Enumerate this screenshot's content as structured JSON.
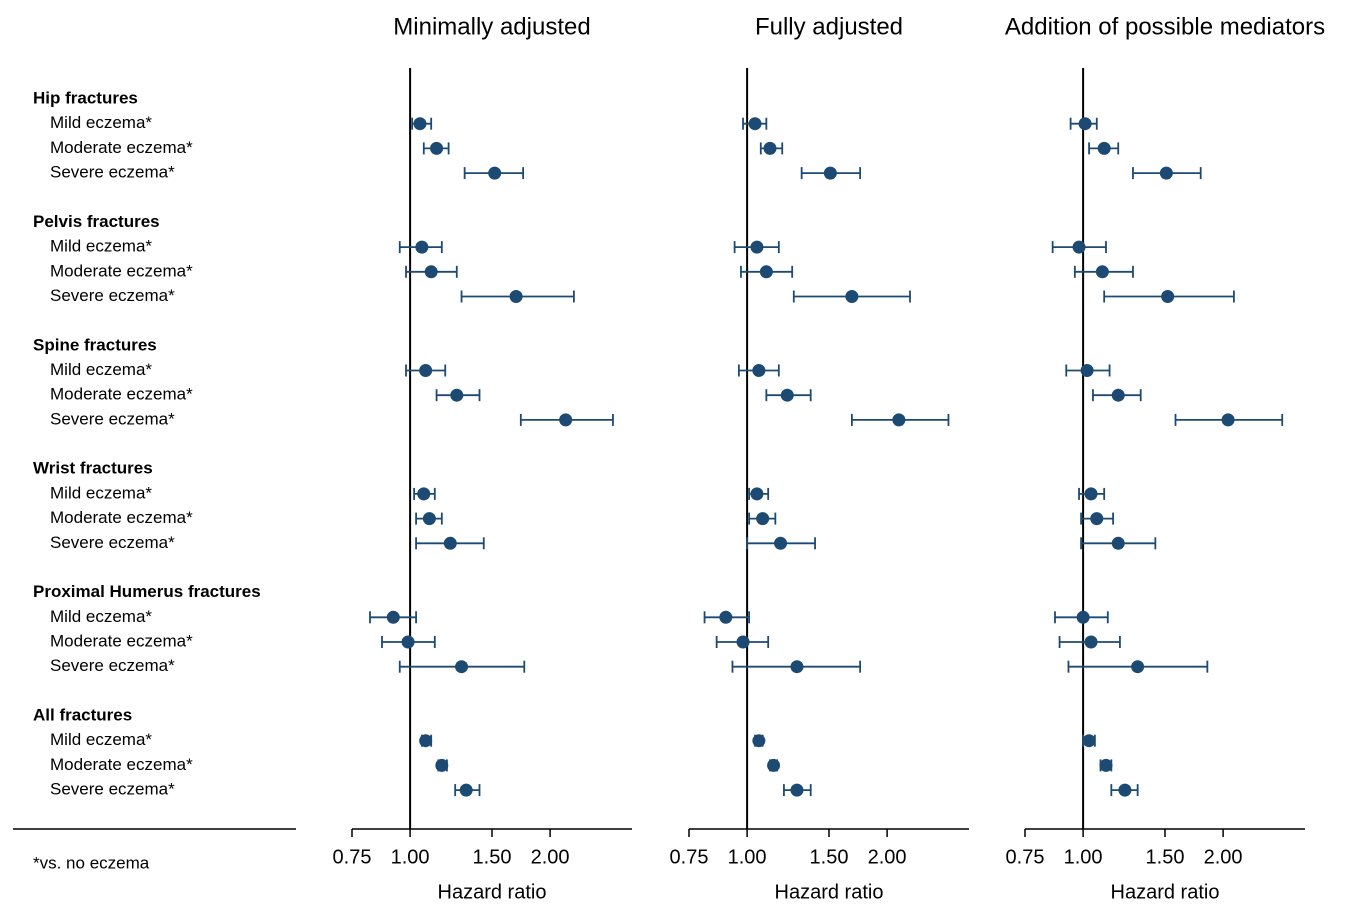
{
  "rows": [
    {
      "title": "Hip fractures",
      "items": [
        "Mild eczema*",
        "Moderate eczema*",
        "Severe eczema*"
      ]
    },
    {
      "title": "Pelvis fractures",
      "items": [
        "Mild eczema*",
        "Moderate eczema*",
        "Severe eczema*"
      ]
    },
    {
      "title": "Spine fractures",
      "items": [
        "Mild eczema*",
        "Moderate eczema*",
        "Severe eczema*"
      ]
    },
    {
      "title": "Wrist fractures",
      "items": [
        "Mild eczema*",
        "Moderate eczema*",
        "Severe eczema*"
      ]
    },
    {
      "title": "Proximal Humerus fractures",
      "items": [
        "Mild eczema*",
        "Moderate eczema*",
        "Severe eczema*"
      ]
    },
    {
      "title": "All fractures",
      "items": [
        "Mild eczema*",
        "Moderate eczema*",
        "Severe eczema*"
      ]
    }
  ],
  "footnote": "*vs. no eczema",
  "chart_data": [
    {
      "type": "forest",
      "title": "Minimally adjusted",
      "xlabel": "Hazard ratio",
      "log_x": true,
      "xlim": [
        0.75,
        3
      ],
      "xticks": [
        0.75,
        {
          "value": 1,
          "label": "1.00"
        },
        {
          "value": 1.5,
          "label": "1.50"
        },
        {
          "value": 2,
          "label": "2.00"
        }
      ],
      "reference_line": 1,
      "color": "#1d4a72",
      "estimate": [
        1.05,
        1.14,
        1.52,
        1.06,
        1.11,
        1.69,
        1.08,
        1.26,
        2.16,
        1.07,
        1.1,
        1.22,
        0.92,
        0.99,
        1.29,
        1.08,
        1.17,
        1.32
      ],
      "lower": [
        1.01,
        1.07,
        1.31,
        0.95,
        0.98,
        1.29,
        0.98,
        1.14,
        1.73,
        1.02,
        1.03,
        1.03,
        0.82,
        0.87,
        0.95,
        1.06,
        1.15,
        1.25
      ],
      "upper": [
        1.11,
        1.21,
        1.75,
        1.17,
        1.26,
        2.25,
        1.19,
        1.41,
        2.73,
        1.13,
        1.17,
        1.44,
        1.03,
        1.13,
        1.76,
        1.11,
        1.2,
        1.41
      ]
    },
    {
      "type": "forest",
      "title": "Fully adjusted",
      "xlabel": "Hazard ratio",
      "log_x": true,
      "xlim": [
        0.75,
        3
      ],
      "xticks": [
        0.75,
        {
          "value": 1,
          "label": "1.00"
        },
        {
          "value": 1.5,
          "label": "1.50"
        },
        {
          "value": 2,
          "label": "2.00"
        }
      ],
      "reference_line": 1,
      "color": "#1d4a72",
      "estimate": [
        1.04,
        1.12,
        1.51,
        1.05,
        1.1,
        1.68,
        1.06,
        1.22,
        2.12,
        1.05,
        1.08,
        1.18,
        0.9,
        0.98,
        1.28,
        1.06,
        1.14,
        1.28
      ],
      "lower": [
        0.98,
        1.07,
        1.31,
        0.94,
        0.97,
        1.26,
        0.96,
        1.1,
        1.68,
        1.01,
        1.01,
        1.0,
        0.81,
        0.86,
        0.93,
        1.04,
        1.12,
        1.2
      ],
      "upper": [
        1.1,
        1.19,
        1.75,
        1.17,
        1.25,
        2.24,
        1.17,
        1.37,
        2.71,
        1.11,
        1.15,
        1.4,
        1.01,
        1.11,
        1.75,
        1.08,
        1.16,
        1.37
      ]
    },
    {
      "type": "forest",
      "title": "Addition of possible mediators",
      "xlabel": "Hazard ratio",
      "log_x": true,
      "xlim": [
        0.75,
        3
      ],
      "xticks": [
        0.75,
        {
          "value": 1,
          "label": "1.00"
        },
        {
          "value": 1.5,
          "label": "1.50"
        },
        {
          "value": 2,
          "label": "2.00"
        }
      ],
      "reference_line": 1,
      "color": "#1d4a72",
      "estimate": [
        1.01,
        1.11,
        1.51,
        0.98,
        1.1,
        1.52,
        1.02,
        1.19,
        2.05,
        1.04,
        1.07,
        1.19,
        1.0,
        1.04,
        1.31,
        1.03,
        1.12,
        1.23
      ],
      "lower": [
        0.94,
        1.03,
        1.28,
        0.86,
        0.96,
        1.11,
        0.92,
        1.05,
        1.58,
        0.98,
        0.99,
        0.99,
        0.87,
        0.89,
        0.93,
        1.0,
        1.09,
        1.15
      ],
      "upper": [
        1.07,
        1.19,
        1.79,
        1.12,
        1.28,
        2.11,
        1.14,
        1.33,
        2.68,
        1.11,
        1.16,
        1.43,
        1.13,
        1.2,
        1.85,
        1.06,
        1.15,
        1.31
      ]
    }
  ]
}
